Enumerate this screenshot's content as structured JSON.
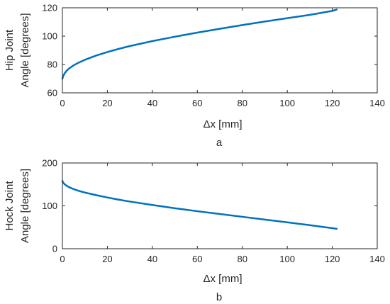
{
  "chart_data": [
    {
      "type": "line",
      "panel_label": "a",
      "xlabel": "Δx [mm]",
      "ylabel_line1": "Hip Joint",
      "ylabel_line2": "Angle [degrees]",
      "xlim": [
        0,
        140
      ],
      "ylim": [
        60,
        120
      ],
      "xticks": [
        "0",
        "20",
        "40",
        "60",
        "80",
        "100",
        "120",
        "140"
      ],
      "yticks": [
        "60",
        "80",
        "100",
        "120"
      ],
      "color": "#0072BD",
      "series": [
        {
          "x": [
            0,
            0.5,
            1,
            2,
            3,
            5,
            7,
            10,
            15,
            20,
            25,
            30,
            40,
            50,
            60,
            70,
            80,
            90,
            100,
            110,
            120,
            122
          ],
          "y": [
            70,
            72.3,
            73.8,
            75.8,
            77.2,
            79.4,
            81.1,
            83.3,
            86.3,
            88.8,
            91.0,
            93.0,
            96.5,
            99.6,
            102.5,
            105.2,
            107.8,
            110.3,
            112.7,
            115.0,
            117.8,
            118.8
          ]
        }
      ]
    },
    {
      "type": "line",
      "panel_label": "b",
      "xlabel": "Δx [mm]",
      "ylabel_line1": "Hock Joint",
      "ylabel_line2": "Angle [degrees]",
      "xlim": [
        0,
        140
      ],
      "ylim": [
        0,
        200
      ],
      "xticks": [
        "0",
        "20",
        "40",
        "60",
        "80",
        "100",
        "120",
        "140"
      ],
      "yticks": [
        "0",
        "100",
        "200"
      ],
      "color": "#0072BD",
      "series": [
        {
          "x": [
            0,
            0.5,
            1,
            2,
            3,
            5,
            7,
            10,
            15,
            20,
            25,
            30,
            40,
            50,
            60,
            70,
            80,
            90,
            100,
            110,
            120,
            122
          ],
          "y": [
            158,
            153,
            150.5,
            146.5,
            143.5,
            139,
            135.5,
            131,
            125,
            119.5,
            114.5,
            110,
            102,
            94.5,
            87.5,
            81,
            74.5,
            68,
            61.5,
            55,
            48,
            46.5
          ]
        }
      ]
    }
  ]
}
